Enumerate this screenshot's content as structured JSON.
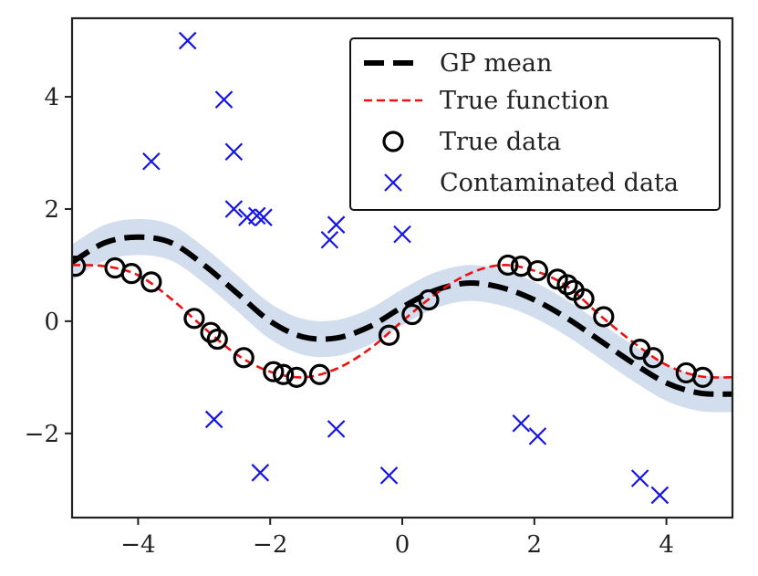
{
  "chart_data": {
    "type": "line",
    "title": "",
    "xlabel": "",
    "ylabel": "",
    "xlim": [
      -5,
      5
    ],
    "ylim": [
      -3.5,
      5.4
    ],
    "x_ticks": [
      -4,
      -2,
      0,
      2,
      4
    ],
    "y_ticks": [
      -2,
      0,
      2,
      4
    ],
    "x_tick_labels": [
      "−4",
      "−2",
      "0",
      "2",
      "4"
    ],
    "y_tick_labels": [
      "−2",
      "0",
      "2",
      "4"
    ],
    "legend_position": "top-right",
    "legend": {
      "gp_mean": "GP mean",
      "true_function": "True function",
      "true_data": "True data",
      "contaminated_data": "Contaminated data"
    },
    "colors": {
      "gp_mean": "#000000",
      "true_function": "#ee1111",
      "band": "#b4c8e1",
      "contaminated": "#1414e6",
      "axes": "#222222"
    },
    "gp_mean": {
      "x": [
        -5.0,
        -4.5,
        -4.0,
        -3.5,
        -3.0,
        -2.5,
        -2.0,
        -1.5,
        -1.0,
        -0.5,
        0.0,
        0.5,
        1.0,
        1.5,
        2.0,
        2.5,
        3.0,
        3.5,
        4.0,
        4.5,
        5.0
      ],
      "y": [
        1.05,
        1.4,
        1.5,
        1.4,
        1.0,
        0.5,
        0.0,
        -0.28,
        -0.3,
        -0.1,
        0.25,
        0.55,
        0.68,
        0.6,
        0.38,
        0.05,
        -0.35,
        -0.75,
        -1.1,
        -1.28,
        -1.3
      ]
    },
    "gp_band_halfwidth": 0.32,
    "true_function": {
      "x": [
        -5.0,
        -4.5,
        -4.0,
        -3.5,
        -3.0,
        -2.5,
        -2.0,
        -1.5,
        -1.0,
        -0.5,
        0.0,
        0.5,
        1.0,
        1.5,
        2.0,
        2.5,
        3.0,
        3.5,
        4.0,
        4.5,
        5.0
      ],
      "y": [
        1.0,
        0.98,
        0.82,
        0.4,
        -0.12,
        -0.6,
        -0.9,
        -1.0,
        -0.85,
        -0.5,
        0.0,
        0.48,
        0.84,
        1.0,
        0.9,
        0.62,
        0.1,
        -0.38,
        -0.78,
        -0.98,
        -1.0
      ]
    },
    "true_data": {
      "x": [
        -4.95,
        -4.35,
        -4.1,
        -3.8,
        -3.15,
        -2.9,
        -2.8,
        -2.4,
        -1.95,
        -1.8,
        -1.6,
        -1.25,
        -0.2,
        0.15,
        0.4,
        1.6,
        1.8,
        2.05,
        2.35,
        2.5,
        2.6,
        2.75,
        3.05,
        3.6,
        3.8,
        4.3,
        4.55
      ],
      "y": [
        0.98,
        0.95,
        0.85,
        0.7,
        0.05,
        -0.2,
        -0.32,
        -0.65,
        -0.9,
        -0.95,
        -1.0,
        -0.95,
        -0.25,
        0.12,
        0.38,
        1.0,
        0.98,
        0.9,
        0.75,
        0.65,
        0.55,
        0.4,
        0.08,
        -0.5,
        -0.65,
        -0.92,
        -1.0
      ]
    },
    "contaminated_data": {
      "x": [
        -3.25,
        -3.8,
        -2.7,
        -2.55,
        -2.55,
        -2.35,
        -2.2,
        -2.1,
        -1.1,
        -1.0,
        0.0,
        -2.85,
        -2.15,
        -1.0,
        -0.2,
        1.8,
        2.05,
        3.6,
        3.9
      ],
      "y": [
        5.0,
        2.85,
        3.95,
        3.02,
        2.0,
        1.85,
        1.88,
        1.85,
        1.45,
        1.72,
        1.55,
        -1.75,
        -2.7,
        -1.92,
        -2.75,
        -1.82,
        -2.05,
        -2.8,
        -3.1
      ]
    }
  }
}
